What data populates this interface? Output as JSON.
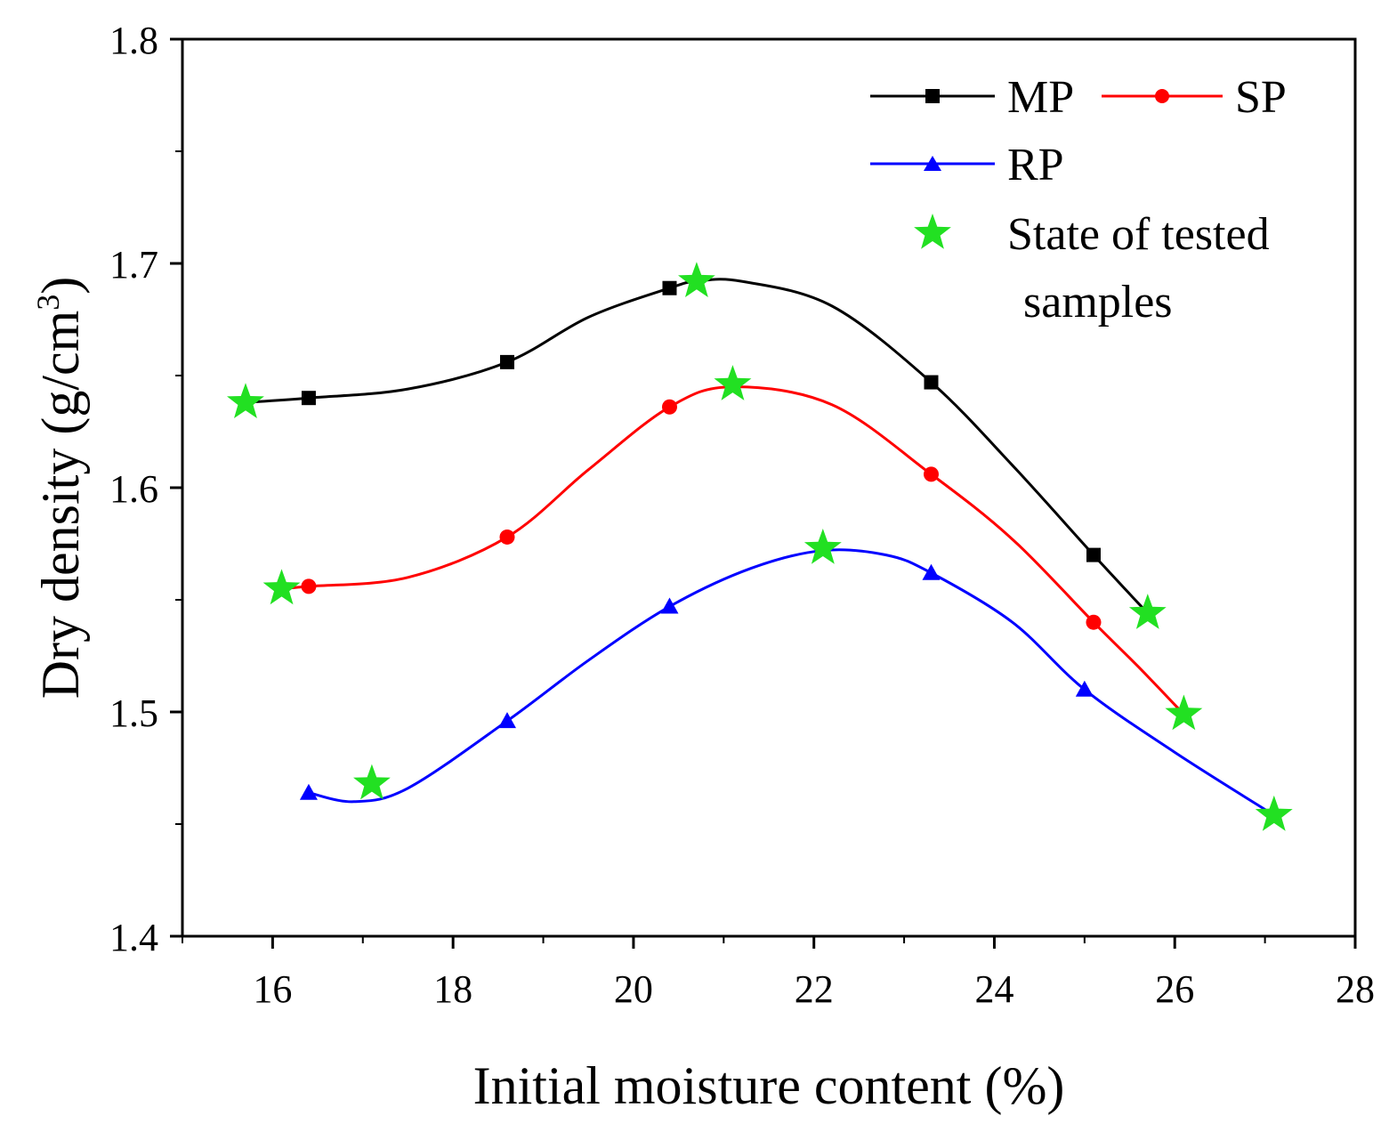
{
  "chart_data": {
    "type": "line",
    "title": "",
    "xlabel": "Initial moisture content (%)",
    "ylabel_main": "Dry density (g/cm",
    "ylabel_sup": "3",
    "ylabel_close": ")",
    "xlim": [
      15,
      28
    ],
    "ylim": [
      1.4,
      1.8
    ],
    "xticks": [
      16,
      18,
      20,
      22,
      24,
      26,
      28
    ],
    "xtick_labels": [
      "16",
      "18",
      "20",
      "22",
      "24",
      "26",
      "28"
    ],
    "yticks": [
      1.4,
      1.5,
      1.6,
      1.7,
      1.8
    ],
    "ytick_labels": [
      "1.4",
      "1.5",
      "1.6",
      "1.7",
      "1.8"
    ],
    "grid": false,
    "legend_position": "top-right",
    "series": [
      {
        "name": "MP",
        "color": "#000000",
        "marker": "square",
        "x": [
          16.4,
          18.6,
          20.4,
          23.3,
          25.1
        ],
        "y": [
          1.64,
          1.656,
          1.689,
          1.647,
          1.57
        ],
        "curve_x": [
          15.7,
          16.4,
          17.5,
          18.6,
          19.5,
          20.4,
          20.7,
          21.2,
          22.2,
          23.3,
          24.2,
          25.1,
          25.7
        ],
        "curve_y": [
          1.638,
          1.64,
          1.644,
          1.656,
          1.676,
          1.689,
          1.692,
          1.692,
          1.681,
          1.647,
          1.61,
          1.57,
          1.544
        ]
      },
      {
        "name": "SP",
        "color": "#ff0000",
        "marker": "circle",
        "x": [
          16.4,
          18.6,
          20.4,
          23.3,
          25.1
        ],
        "y": [
          1.556,
          1.578,
          1.636,
          1.606,
          1.54
        ],
        "curve_x": [
          16.1,
          16.4,
          17.5,
          18.6,
          19.5,
          20.4,
          21.1,
          22.2,
          23.3,
          24.2,
          25.1,
          25.6,
          26.1
        ],
        "curve_y": [
          1.555,
          1.556,
          1.56,
          1.578,
          1.608,
          1.636,
          1.645,
          1.637,
          1.606,
          1.577,
          1.54,
          1.52,
          1.499
        ]
      },
      {
        "name": "RP",
        "color": "#0000ff",
        "marker": "triangle",
        "x": [
          16.4,
          18.6,
          20.4,
          23.3,
          25.0
        ],
        "y": [
          1.464,
          1.496,
          1.547,
          1.562,
          1.51
        ],
        "curve_x": [
          16.4,
          16.9,
          17.5,
          18.6,
          19.5,
          20.4,
          21.3,
          22.1,
          22.8,
          23.3,
          24.2,
          25.0,
          26.0,
          27.1
        ],
        "curve_y": [
          1.464,
          1.46,
          1.466,
          1.496,
          1.523,
          1.547,
          1.564,
          1.572,
          1.57,
          1.562,
          1.54,
          1.51,
          1.482,
          1.454
        ]
      }
    ],
    "tested_samples": {
      "name_line1": "State of tested",
      "name_line2": "samples",
      "color": "#22e022",
      "marker": "star",
      "points": [
        {
          "x": 15.7,
          "y": 1.638
        },
        {
          "x": 20.7,
          "y": 1.692
        },
        {
          "x": 25.7,
          "y": 1.544
        },
        {
          "x": 16.1,
          "y": 1.555
        },
        {
          "x": 21.1,
          "y": 1.646
        },
        {
          "x": 26.1,
          "y": 1.499
        },
        {
          "x": 17.1,
          "y": 1.468
        },
        {
          "x": 22.1,
          "y": 1.573
        },
        {
          "x": 27.1,
          "y": 1.454
        }
      ]
    }
  }
}
